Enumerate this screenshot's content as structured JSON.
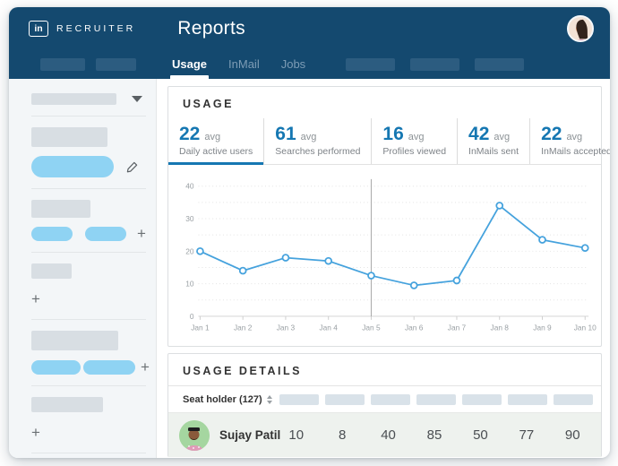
{
  "header": {
    "logo_text": "in",
    "brand": "RECRUITER",
    "title": "Reports",
    "tabs": [
      {
        "label": "Usage",
        "active": true
      },
      {
        "label": "InMail",
        "active": false
      },
      {
        "label": "Jobs",
        "active": false
      }
    ]
  },
  "usage": {
    "title": "USAGE",
    "stats": [
      {
        "value": "22",
        "unit": "avg",
        "label": "Daily active users",
        "active": true
      },
      {
        "value": "61",
        "unit": "avg",
        "label": "Searches performed",
        "active": false
      },
      {
        "value": "16",
        "unit": "avg",
        "label": "Profiles viewed",
        "active": false
      },
      {
        "value": "42",
        "unit": "avg",
        "label": "InMails sent",
        "active": false
      },
      {
        "value": "22",
        "unit": "avg",
        "label": "InMails accepted",
        "active": false
      }
    ]
  },
  "chart_data": {
    "type": "line",
    "title": "",
    "x": [
      "Jan 1",
      "Jan 2",
      "Jan 3",
      "Jan 4",
      "Jan 5",
      "Jan 6",
      "Jan 7",
      "Jan 8",
      "Jan 9",
      "Jan 10"
    ],
    "values": [
      20,
      14,
      18,
      17,
      12.5,
      9.5,
      11,
      34,
      23.5,
      21
    ],
    "xlabel": "",
    "ylabel": "",
    "ylim": [
      0,
      40
    ],
    "yticks": [
      0,
      10,
      20,
      30,
      40
    ],
    "grid_step": 5,
    "grid": "dotted horizontal",
    "legend": "none",
    "crosshair_x": "Jan 5",
    "line_color": "#45a2dd",
    "marker": "open-circle"
  },
  "details": {
    "title": "USAGE DETAILS",
    "sort_column": "Seat holder (127)",
    "placeholder_columns": 7,
    "rows": [
      {
        "name": "Sujay Patil",
        "values": [
          "10",
          "8",
          "40",
          "85",
          "50",
          "77",
          "90"
        ]
      }
    ]
  },
  "colors": {
    "header_bg": "#14496f",
    "accent": "#1577b2",
    "chart_line": "#45a2dd",
    "sidebar_pill": "#8fd3f3",
    "skeleton_grey": "#d8dee3",
    "row_bg": "#eef2ee",
    "row_avatar_bg": "#a5d6a0"
  },
  "icons": {
    "dropdown": "chevron-down",
    "edit": "pencil",
    "add": "plus",
    "sort": "sort-arrows",
    "logo": "linkedin-in"
  }
}
